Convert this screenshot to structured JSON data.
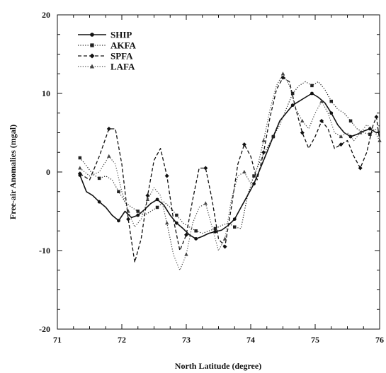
{
  "chart_data": {
    "type": "line",
    "xlabel": "North Latitude (degree)",
    "ylabel": "Free-air Anomalies (mgal)",
    "xlim": [
      71,
      76
    ],
    "ylim": [
      -20,
      20
    ],
    "x_ticks": [
      "71",
      "72",
      "73",
      "74",
      "75",
      "76"
    ],
    "y_ticks": [
      "-20",
      "-10",
      "0",
      "10",
      "20"
    ],
    "grid": false,
    "legend_position": "top-left",
    "series": [
      {
        "name": "SHIP",
        "style": "solid",
        "marker": "circle",
        "color": "#111111",
        "points": [
          [
            71.35,
            -0.4
          ],
          [
            71.45,
            -2.5
          ],
          [
            71.55,
            -3.0
          ],
          [
            71.65,
            -3.8
          ],
          [
            71.75,
            -4.5
          ],
          [
            71.85,
            -5.5
          ],
          [
            71.95,
            -6.2
          ],
          [
            72.05,
            -5.0
          ],
          [
            72.15,
            -5.8
          ],
          [
            72.25,
            -5.5
          ],
          [
            72.35,
            -4.8
          ],
          [
            72.45,
            -4.0
          ],
          [
            72.55,
            -3.5
          ],
          [
            72.65,
            -4.2
          ],
          [
            72.75,
            -5.5
          ],
          [
            72.85,
            -6.5
          ],
          [
            72.95,
            -7.2
          ],
          [
            73.05,
            -8.0
          ],
          [
            73.15,
            -8.5
          ],
          [
            73.25,
            -8.2
          ],
          [
            73.35,
            -7.8
          ],
          [
            73.45,
            -7.6
          ],
          [
            73.55,
            -7.4
          ],
          [
            73.65,
            -6.8
          ],
          [
            73.75,
            -6.0
          ],
          [
            73.85,
            -4.5
          ],
          [
            73.95,
            -3.0
          ],
          [
            74.05,
            -1.5
          ],
          [
            74.15,
            0.5
          ],
          [
            74.25,
            2.5
          ],
          [
            74.35,
            4.5
          ],
          [
            74.45,
            6.5
          ],
          [
            74.55,
            7.5
          ],
          [
            74.65,
            8.5
          ],
          [
            74.75,
            9.0
          ],
          [
            74.85,
            9.5
          ],
          [
            74.95,
            10.0
          ],
          [
            75.05,
            9.5
          ],
          [
            75.15,
            8.8
          ],
          [
            75.25,
            7.5
          ],
          [
            75.35,
            6.0
          ],
          [
            75.45,
            5.0
          ],
          [
            75.55,
            4.5
          ],
          [
            75.65,
            4.8
          ],
          [
            75.75,
            5.2
          ],
          [
            75.85,
            5.5
          ],
          [
            75.95,
            5.0
          ],
          [
            76.0,
            5.2
          ]
        ]
      },
      {
        "name": "AKFA",
        "style": "dotted",
        "marker": "square",
        "color": "#222222",
        "points": [
          [
            71.35,
            1.8
          ],
          [
            71.45,
            0.8
          ],
          [
            71.55,
            -0.3
          ],
          [
            71.65,
            -0.8
          ],
          [
            71.75,
            -0.5
          ],
          [
            71.85,
            -1.0
          ],
          [
            71.95,
            -2.5
          ],
          [
            72.05,
            -3.8
          ],
          [
            72.15,
            -4.5
          ],
          [
            72.25,
            -5.0
          ],
          [
            72.35,
            -5.5
          ],
          [
            72.45,
            -5.0
          ],
          [
            72.55,
            -4.5
          ],
          [
            72.65,
            -3.8
          ],
          [
            72.75,
            -4.5
          ],
          [
            72.85,
            -5.5
          ],
          [
            72.95,
            -6.5
          ],
          [
            73.05,
            -7.0
          ],
          [
            73.15,
            -7.5
          ],
          [
            73.25,
            -7.8
          ],
          [
            73.35,
            -7.5
          ],
          [
            73.45,
            -7.2
          ],
          [
            73.55,
            -6.8
          ],
          [
            73.65,
            -6.5
          ],
          [
            73.75,
            -7.0
          ],
          [
            73.85,
            -7.2
          ],
          [
            73.95,
            -3.0
          ],
          [
            74.05,
            -0.5
          ],
          [
            74.15,
            1.5
          ],
          [
            74.25,
            3.0
          ],
          [
            74.35,
            4.5
          ],
          [
            74.45,
            6.0
          ],
          [
            74.55,
            8.0
          ],
          [
            74.65,
            10.0
          ],
          [
            74.75,
            11.0
          ],
          [
            74.85,
            11.5
          ],
          [
            74.95,
            11.0
          ],
          [
            75.05,
            11.5
          ],
          [
            75.15,
            10.5
          ],
          [
            75.25,
            9.0
          ],
          [
            75.35,
            8.0
          ],
          [
            75.45,
            7.5
          ],
          [
            75.55,
            6.5
          ],
          [
            75.65,
            5.5
          ],
          [
            75.75,
            5.0
          ],
          [
            75.85,
            4.8
          ],
          [
            75.95,
            5.5
          ],
          [
            76.0,
            6.0
          ]
        ]
      },
      {
        "name": "SPFA",
        "style": "dashed",
        "marker": "diamond",
        "color": "#111111",
        "points": [
          [
            71.35,
            -0.2
          ],
          [
            71.5,
            -1.0
          ],
          [
            71.65,
            2.0
          ],
          [
            71.8,
            5.5
          ],
          [
            71.9,
            5.5
          ],
          [
            72.0,
            1.0
          ],
          [
            72.1,
            -6.0
          ],
          [
            72.2,
            -11.5
          ],
          [
            72.3,
            -8.5
          ],
          [
            72.4,
            -3.0
          ],
          [
            72.5,
            1.5
          ],
          [
            72.6,
            3.0
          ],
          [
            72.7,
            -0.5
          ],
          [
            72.8,
            -6.0
          ],
          [
            72.9,
            -10.0
          ],
          [
            73.0,
            -8.0
          ],
          [
            73.1,
            -3.5
          ],
          [
            73.2,
            0.5
          ],
          [
            73.3,
            0.5
          ],
          [
            73.4,
            -3.5
          ],
          [
            73.5,
            -8.5
          ],
          [
            73.6,
            -9.5
          ],
          [
            73.7,
            -4.5
          ],
          [
            73.8,
            1.0
          ],
          [
            73.9,
            3.5
          ],
          [
            74.0,
            2.0
          ],
          [
            74.1,
            -1.0
          ],
          [
            74.2,
            2.5
          ],
          [
            74.3,
            7.0
          ],
          [
            74.4,
            10.5
          ],
          [
            74.5,
            12.0
          ],
          [
            74.6,
            11.5
          ],
          [
            74.7,
            8.0
          ],
          [
            74.8,
            5.0
          ],
          [
            74.9,
            3.0
          ],
          [
            75.0,
            4.5
          ],
          [
            75.1,
            6.5
          ],
          [
            75.2,
            5.5
          ],
          [
            75.3,
            3.0
          ],
          [
            75.4,
            3.5
          ],
          [
            75.5,
            4.0
          ],
          [
            75.6,
            2.0
          ],
          [
            75.7,
            0.5
          ],
          [
            75.8,
            2.5
          ],
          [
            75.9,
            6.0
          ],
          [
            75.95,
            7.0
          ],
          [
            76.0,
            4.0
          ]
        ]
      },
      {
        "name": "LAFA",
        "style": "dotted",
        "marker": "triangle",
        "color": "#444444",
        "points": [
          [
            71.35,
            0.5
          ],
          [
            71.5,
            -0.5
          ],
          [
            71.65,
            0.0
          ],
          [
            71.8,
            2.0
          ],
          [
            71.9,
            1.0
          ],
          [
            72.0,
            -2.5
          ],
          [
            72.1,
            -5.0
          ],
          [
            72.2,
            -7.0
          ],
          [
            72.3,
            -6.0
          ],
          [
            72.4,
            -3.5
          ],
          [
            72.5,
            -2.0
          ],
          [
            72.6,
            -3.0
          ],
          [
            72.7,
            -6.5
          ],
          [
            72.8,
            -10.5
          ],
          [
            72.9,
            -12.5
          ],
          [
            73.0,
            -10.5
          ],
          [
            73.1,
            -6.5
          ],
          [
            73.2,
            -4.5
          ],
          [
            73.3,
            -4.0
          ],
          [
            73.4,
            -7.0
          ],
          [
            73.5,
            -10.0
          ],
          [
            73.6,
            -8.5
          ],
          [
            73.7,
            -3.5
          ],
          [
            73.8,
            -0.5
          ],
          [
            73.9,
            0.0
          ],
          [
            74.0,
            -1.5
          ],
          [
            74.1,
            0.5
          ],
          [
            74.2,
            4.0
          ],
          [
            74.3,
            8.0
          ],
          [
            74.4,
            11.0
          ],
          [
            74.5,
            12.5
          ],
          [
            74.6,
            11.0
          ],
          [
            74.7,
            8.0
          ],
          [
            74.8,
            6.5
          ],
          [
            74.9,
            5.5
          ],
          [
            75.0,
            7.5
          ],
          [
            75.1,
            9.0
          ],
          [
            75.2,
            7.5
          ],
          [
            75.3,
            5.0
          ],
          [
            75.4,
            4.5
          ],
          [
            75.5,
            5.0
          ],
          [
            75.6,
            4.0
          ],
          [
            75.7,
            5.0
          ],
          [
            75.8,
            6.0
          ],
          [
            75.9,
            5.5
          ],
          [
            76.0,
            4.0
          ]
        ]
      }
    ]
  }
}
